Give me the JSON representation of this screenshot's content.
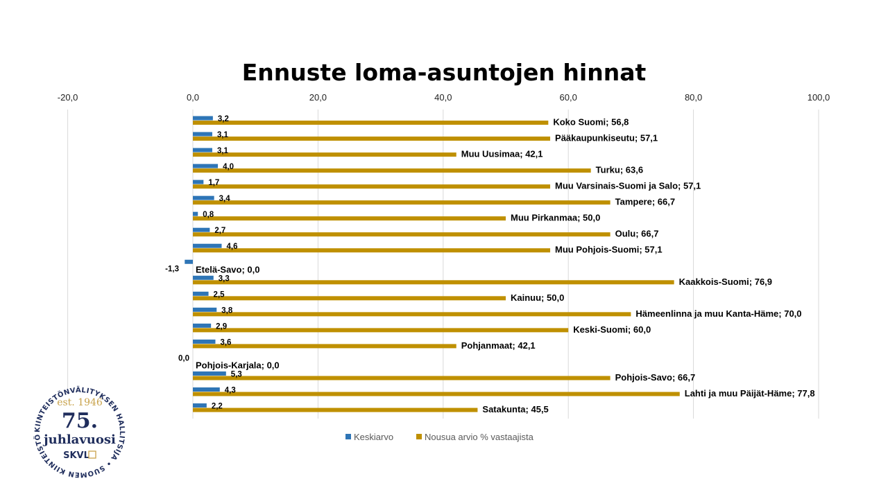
{
  "chart_data": {
    "type": "bar",
    "orientation": "horizontal",
    "title": "Ennuste loma-asuntojen hinnat",
    "xlim": [
      -20,
      100
    ],
    "x_ticks": [
      "-20,0",
      "0,0",
      "20,0",
      "40,0",
      "60,0",
      "80,0",
      "100,0"
    ],
    "grid": true,
    "legend_position": "bottom",
    "categories": [
      "Koko Suomi",
      "Pääkaupunkiseutu",
      "Muu Uusimaa",
      "Turku",
      "Muu Varsinais-Suomi ja Salo",
      "Tampere",
      "Muu Pirkanmaa",
      "Oulu",
      "Muu Pohjois-Suomi",
      "Etelä-Savo",
      "Kaakkois-Suomi",
      "Kainuu",
      "Hämeenlinna ja muu Kanta-Häme",
      "Keski-Suomi",
      "Pohjanmaat",
      "Pohjois-Karjala",
      "Pohjois-Savo",
      "Lahti ja muu Päijät-Häme",
      "Satakunta"
    ],
    "series": [
      {
        "name": "Keskiarvo",
        "color": "#2e75b6",
        "values": [
          3.2,
          3.1,
          3.1,
          4.0,
          1.7,
          3.4,
          0.8,
          2.7,
          4.6,
          -1.3,
          3.3,
          2.5,
          3.8,
          2.9,
          3.6,
          0.0,
          5.3,
          4.3,
          2.2
        ],
        "labels": [
          "3,2",
          "3,1",
          "3,1",
          "4,0",
          "1,7",
          "3,4",
          "0,8",
          "2,7",
          "4,6",
          "-1,3",
          "3,3",
          "2,5",
          "3,8",
          "2,9",
          "3,6",
          "0,0",
          "5,3",
          "4,3",
          "2,2"
        ]
      },
      {
        "name": "Nousua arvio % vastaajista",
        "color": "#bf9000",
        "values": [
          56.8,
          57.1,
          42.1,
          63.6,
          57.1,
          66.7,
          50.0,
          66.7,
          57.1,
          0.0,
          76.9,
          50.0,
          70.0,
          60.0,
          42.1,
          0.0,
          66.7,
          77.8,
          45.5
        ],
        "labels": [
          "Koko Suomi; 56,8",
          "Pääkaupunkiseutu; 57,1",
          "Muu Uusimaa; 42,1",
          "Turku; 63,6",
          "Muu Varsinais-Suomi ja Salo; 57,1",
          "Tampere; 66,7",
          "Muu Pirkanmaa; 50,0",
          "Oulu; 66,7",
          "Muu Pohjois-Suomi; 57,1",
          "Etelä-Savo; 0,0",
          "Kaakkois-Suomi; 76,9",
          "Kainuu; 50,0",
          "Hämeenlinna ja muu Kanta-Häme; 70,0",
          "Keski-Suomi; 60,0",
          "Pohjanmaat; 42,1",
          "Pohjois-Karjala; 0,0",
          "Pohjois-Savo; 66,7",
          "Lahti ja muu Päijät-Häme; 77,8",
          "Satakunta; 45,5"
        ]
      }
    ]
  },
  "badge": {
    "ring_text": "KIINTEISTÖNVÄLITYKSEN HALLITSIJA • SUOMEN KIINTEISTÖNVÄLITTÄJÄT RY •",
    "est": "est. 1946",
    "number": "75.",
    "word": "juhlavuosi",
    "brand": "SKVL"
  }
}
